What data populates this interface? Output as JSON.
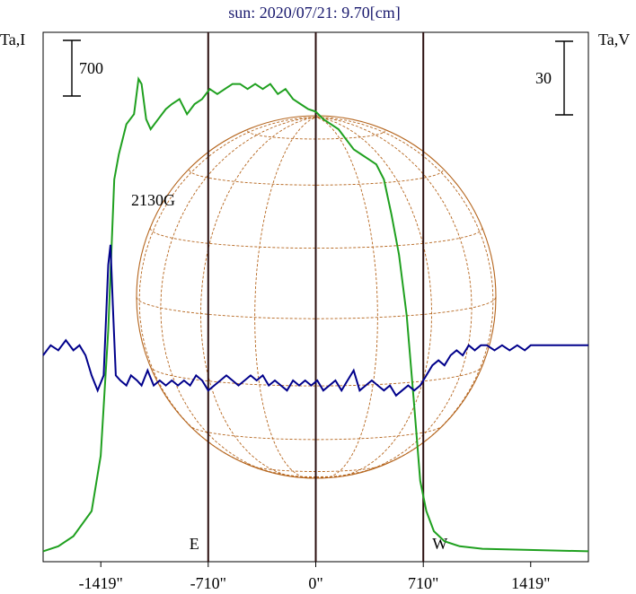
{
  "title": "sun: 2020/07/21: 9.70[cm]",
  "colors": {
    "title": "#1a1a6e",
    "intensity": "#1fa01f",
    "polarization": "#00008b",
    "grid": "#b5651d",
    "frame": "#000000",
    "marker_lines": "#2b0f0f"
  },
  "chart_data": {
    "type": "line",
    "title": "sun: 2020/07/21: 9.70[cm]",
    "xlabel": "",
    "left_axis_label": "Ta,I",
    "right_axis_label": "Ta,V",
    "xlim": [
      -1800,
      1800
    ],
    "x_ticks": [
      -1419,
      -710,
      0,
      710,
      1419
    ],
    "x_tick_labels": [
      "-1419\"",
      "-710\"",
      "0\"",
      "710\"",
      "1419\""
    ],
    "scale_bar_left": "700",
    "scale_bar_right": "30",
    "limb_markers": [
      {
        "x": -710,
        "label": "E"
      },
      {
        "x": 0,
        "label": ""
      },
      {
        "x": 710,
        "label": "W"
      }
    ],
    "annotations": [
      {
        "x": -620,
        "text": "2130G"
      }
    ],
    "series": [
      {
        "id": "intensity",
        "color": "#1fa01f",
        "points": [
          [
            -1800,
            0.01
          ],
          [
            -1700,
            0.02
          ],
          [
            -1600,
            0.04
          ],
          [
            -1480,
            0.09
          ],
          [
            -1420,
            0.2
          ],
          [
            -1370,
            0.45
          ],
          [
            -1330,
            0.75
          ],
          [
            -1300,
            0.8
          ],
          [
            -1250,
            0.86
          ],
          [
            -1200,
            0.88
          ],
          [
            -1170,
            0.95
          ],
          [
            -1150,
            0.94
          ],
          [
            -1120,
            0.87
          ],
          [
            -1090,
            0.85
          ],
          [
            -1040,
            0.87
          ],
          [
            -990,
            0.89
          ],
          [
            -950,
            0.9
          ],
          [
            -900,
            0.91
          ],
          [
            -850,
            0.88
          ],
          [
            -800,
            0.9
          ],
          [
            -750,
            0.91
          ],
          [
            -700,
            0.93
          ],
          [
            -650,
            0.92
          ],
          [
            -600,
            0.93
          ],
          [
            -550,
            0.94
          ],
          [
            -500,
            0.94
          ],
          [
            -450,
            0.93
          ],
          [
            -400,
            0.94
          ],
          [
            -350,
            0.93
          ],
          [
            -300,
            0.94
          ],
          [
            -250,
            0.92
          ],
          [
            -200,
            0.93
          ],
          [
            -150,
            0.91
          ],
          [
            -100,
            0.9
          ],
          [
            -50,
            0.89
          ],
          [
            0,
            0.885
          ],
          [
            50,
            0.87
          ],
          [
            100,
            0.86
          ],
          [
            150,
            0.85
          ],
          [
            200,
            0.83
          ],
          [
            250,
            0.81
          ],
          [
            300,
            0.8
          ],
          [
            350,
            0.79
          ],
          [
            400,
            0.78
          ],
          [
            450,
            0.75
          ],
          [
            500,
            0.68
          ],
          [
            550,
            0.6
          ],
          [
            600,
            0.48
          ],
          [
            650,
            0.3
          ],
          [
            690,
            0.15
          ],
          [
            730,
            0.09
          ],
          [
            780,
            0.05
          ],
          [
            850,
            0.03
          ],
          [
            950,
            0.02
          ],
          [
            1100,
            0.015
          ],
          [
            1800,
            0.01
          ]
        ]
      },
      {
        "id": "polarization",
        "color": "#00008b",
        "points": [
          [
            -1800,
            0.4
          ],
          [
            -1750,
            0.42
          ],
          [
            -1700,
            0.41
          ],
          [
            -1650,
            0.43
          ],
          [
            -1600,
            0.41
          ],
          [
            -1560,
            0.42
          ],
          [
            -1520,
            0.4
          ],
          [
            -1480,
            0.36
          ],
          [
            -1440,
            0.33
          ],
          [
            -1400,
            0.36
          ],
          [
            -1370,
            0.58
          ],
          [
            -1355,
            0.62
          ],
          [
            -1340,
            0.5
          ],
          [
            -1320,
            0.36
          ],
          [
            -1290,
            0.35
          ],
          [
            -1250,
            0.34
          ],
          [
            -1220,
            0.36
          ],
          [
            -1180,
            0.35
          ],
          [
            -1150,
            0.34
          ],
          [
            -1110,
            0.37
          ],
          [
            -1070,
            0.34
          ],
          [
            -1030,
            0.35
          ],
          [
            -990,
            0.34
          ],
          [
            -950,
            0.35
          ],
          [
            -910,
            0.34
          ],
          [
            -870,
            0.35
          ],
          [
            -830,
            0.34
          ],
          [
            -790,
            0.36
          ],
          [
            -750,
            0.35
          ],
          [
            -710,
            0.33
          ],
          [
            -670,
            0.34
          ],
          [
            -630,
            0.35
          ],
          [
            -590,
            0.36
          ],
          [
            -550,
            0.35
          ],
          [
            -510,
            0.34
          ],
          [
            -470,
            0.35
          ],
          [
            -430,
            0.36
          ],
          [
            -390,
            0.35
          ],
          [
            -350,
            0.36
          ],
          [
            -310,
            0.34
          ],
          [
            -270,
            0.35
          ],
          [
            -230,
            0.34
          ],
          [
            -190,
            0.33
          ],
          [
            -150,
            0.35
          ],
          [
            -110,
            0.34
          ],
          [
            -70,
            0.35
          ],
          [
            -30,
            0.34
          ],
          [
            10,
            0.35
          ],
          [
            50,
            0.33
          ],
          [
            90,
            0.34
          ],
          [
            130,
            0.35
          ],
          [
            170,
            0.33
          ],
          [
            210,
            0.35
          ],
          [
            250,
            0.37
          ],
          [
            290,
            0.33
          ],
          [
            330,
            0.34
          ],
          [
            370,
            0.35
          ],
          [
            410,
            0.34
          ],
          [
            450,
            0.33
          ],
          [
            490,
            0.34
          ],
          [
            530,
            0.32
          ],
          [
            570,
            0.33
          ],
          [
            610,
            0.34
          ],
          [
            650,
            0.33
          ],
          [
            690,
            0.34
          ],
          [
            730,
            0.36
          ],
          [
            770,
            0.38
          ],
          [
            810,
            0.39
          ],
          [
            850,
            0.38
          ],
          [
            890,
            0.4
          ],
          [
            930,
            0.41
          ],
          [
            970,
            0.4
          ],
          [
            1010,
            0.42
          ],
          [
            1050,
            0.41
          ],
          [
            1090,
            0.42
          ],
          [
            1130,
            0.42
          ],
          [
            1180,
            0.41
          ],
          [
            1230,
            0.42
          ],
          [
            1280,
            0.41
          ],
          [
            1330,
            0.42
          ],
          [
            1380,
            0.41
          ],
          [
            1419,
            0.42
          ],
          [
            1800,
            0.42
          ]
        ]
      }
    ]
  }
}
